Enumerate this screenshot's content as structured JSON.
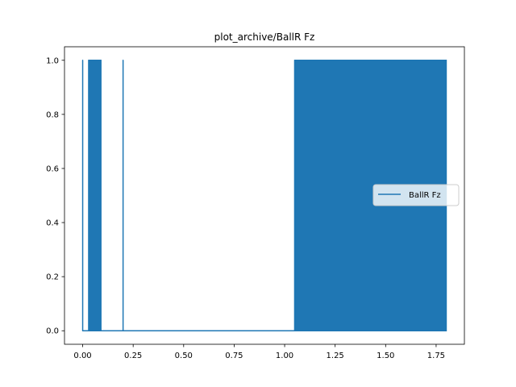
{
  "chart_data": {
    "type": "line",
    "title": "plot_archive/BallR Fz",
    "xlabel": "",
    "ylabel": "",
    "xlim": [
      -0.09,
      1.89
    ],
    "ylim": [
      -0.05,
      1.05
    ],
    "xticks": [
      0.0,
      0.25,
      0.5,
      0.75,
      1.0,
      1.25,
      1.5,
      1.75
    ],
    "xtick_labels": [
      "0.00",
      "0.25",
      "0.50",
      "0.75",
      "1.00",
      "1.25",
      "1.50",
      "1.75"
    ],
    "yticks": [
      0.0,
      0.2,
      0.4,
      0.6,
      0.8,
      1.0
    ],
    "ytick_labels": [
      "0.0",
      "0.2",
      "0.4",
      "0.6",
      "0.8",
      "1.0"
    ],
    "grid": false,
    "legend_position": "center-right",
    "series": [
      {
        "name": "BallR Fz",
        "color": "#1f77b4",
        "description": "Binary signal oscillating between 0 and 1",
        "segments": [
          {
            "type": "spike",
            "x": 0.0
          },
          {
            "type": "flat",
            "x_start": 0.0,
            "x_end": 0.03,
            "value": 0
          },
          {
            "type": "dense_oscillation",
            "x_start": 0.03,
            "x_end": 0.09,
            "min": 0,
            "max": 1
          },
          {
            "type": "flat",
            "x_start": 0.09,
            "x_end": 0.2,
            "value": 0
          },
          {
            "type": "spike",
            "x": 0.2
          },
          {
            "type": "flat",
            "x_start": 0.2,
            "x_end": 1.05,
            "value": 0
          },
          {
            "type": "dense_oscillation",
            "x_start": 1.05,
            "x_end": 1.8,
            "min": 0,
            "max": 1
          }
        ]
      }
    ]
  }
}
